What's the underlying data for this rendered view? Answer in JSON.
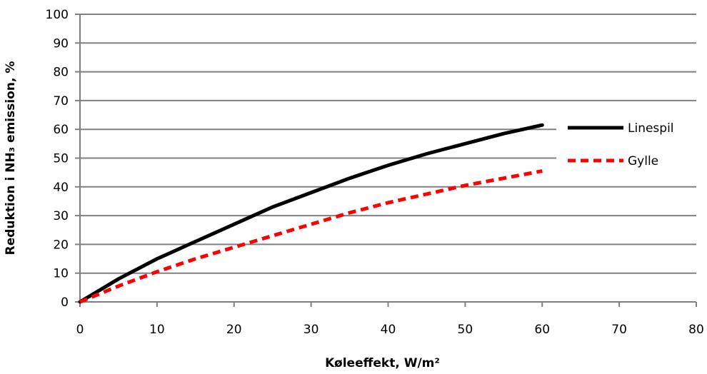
{
  "chart_data": {
    "type": "line",
    "title": "",
    "xlabel": "Køleeffekt, W/m²",
    "ylabel": "Reduktion i NH₃ emission, %",
    "xlim": [
      0,
      80
    ],
    "ylim": [
      0,
      100
    ],
    "x_ticks": [
      "0",
      "10",
      "20",
      "30",
      "40",
      "50",
      "60",
      "70",
      "80"
    ],
    "y_ticks": [
      "0",
      "10",
      "20",
      "30",
      "40",
      "50",
      "60",
      "70",
      "80",
      "90",
      "100"
    ],
    "grid": "horizontal",
    "legend_position": "right",
    "series": [
      {
        "name": "Linespil",
        "color": "#000000",
        "style": "solid",
        "x": [
          0,
          5,
          10,
          15,
          20,
          25,
          30,
          35,
          40,
          45,
          50,
          55,
          60
        ],
        "y": [
          0,
          8,
          15,
          21,
          27,
          33,
          38,
          43,
          47.5,
          51.5,
          55,
          58.5,
          61.5
        ]
      },
      {
        "name": "Gylle",
        "color": "#ff0000",
        "style": "dashed",
        "x": [
          0,
          5,
          10,
          15,
          20,
          25,
          30,
          35,
          40,
          45,
          50,
          55,
          60
        ],
        "y": [
          0,
          5.5,
          10.5,
          15,
          19,
          23,
          27,
          31,
          34.5,
          37.5,
          40.5,
          43,
          45.5
        ]
      }
    ]
  }
}
